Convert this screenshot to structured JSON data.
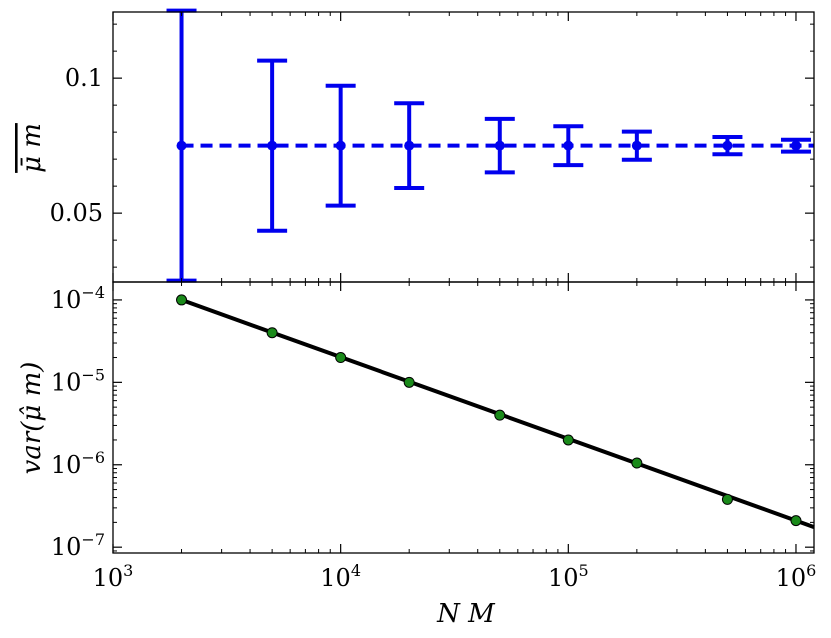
{
  "chart_data": [
    {
      "type": "errorbar",
      "ylabel": "μ̄ m",
      "xscale": "log",
      "xlim": [
        1000,
        1200000
      ],
      "ylim": [
        0.0245,
        0.1245
      ],
      "yticks": [
        0.05,
        0.1
      ],
      "ytick_labels": [
        "0.05",
        "0.1"
      ],
      "grid": false,
      "color": "#0000ee",
      "line_style": "dashed",
      "series": [
        {
          "x": [
            2000,
            5000,
            10000,
            20000,
            50000,
            100000,
            200000,
            500000,
            1000000
          ],
          "y": [
            0.075,
            0.075,
            0.075,
            0.075,
            0.075,
            0.075,
            0.075,
            0.075,
            0.075
          ],
          "err": [
            0.05,
            0.0315,
            0.0222,
            0.0157,
            0.0099,
            0.0072,
            0.0052,
            0.0032,
            0.0022
          ]
        }
      ]
    },
    {
      "type": "line",
      "ylabel": "var(μ̂ m)",
      "xlabel": "N M",
      "xscale": "log",
      "yscale": "log",
      "xlim": [
        1000,
        1200000
      ],
      "ylim": [
        8.5e-08,
        0.000165
      ],
      "xticks": [
        1000,
        10000,
        100000,
        1000000
      ],
      "xtick_labels": [
        {
          "base": "10",
          "exp": "3"
        },
        {
          "base": "10",
          "exp": "4"
        },
        {
          "base": "10",
          "exp": "5"
        },
        {
          "base": "10",
          "exp": "6"
        }
      ],
      "yticks": [
        1e-07,
        1e-06,
        1e-05,
        0.0001
      ],
      "ytick_labels": [
        {
          "base": "10",
          "exp": "−7"
        },
        {
          "base": "10",
          "exp": "−6"
        },
        {
          "base": "10",
          "exp": "−5"
        },
        {
          "base": "10",
          "exp": "−4"
        }
      ],
      "grid": false,
      "line_color": "#000000",
      "marker_color": "#1a8a1a",
      "series": [
        {
          "x": [
            2000,
            5000,
            10000,
            20000,
            50000,
            100000,
            200000,
            500000,
            1000000
          ],
          "y": [
            0.0001,
            4e-05,
            2e-05,
            1e-05,
            4e-06,
            2e-06,
            1.05e-06,
            3.8e-07,
            2.1e-07
          ]
        }
      ]
    }
  ]
}
